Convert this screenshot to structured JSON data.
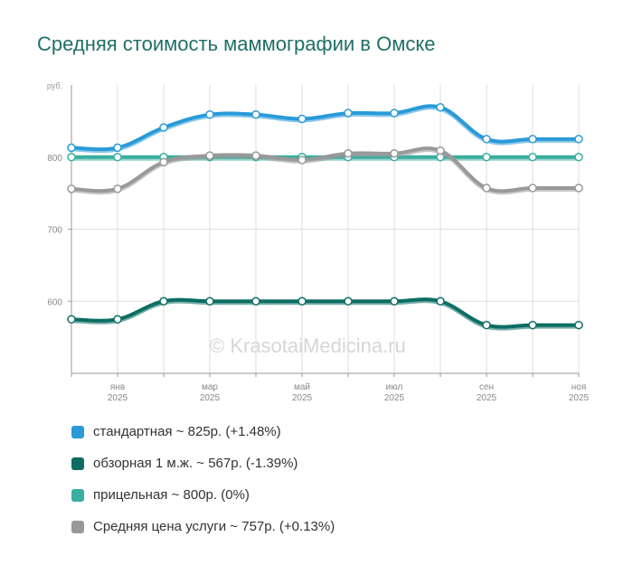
{
  "title": "Средняя стоимость маммографии в Омске",
  "watermark": "© KrasotaiMedicina.ru",
  "chart_data": {
    "type": "line",
    "title": "Средняя стоимость маммографии в Омске",
    "ylabel": "руб.",
    "xlabel": "",
    "ylim": [
      500,
      900
    ],
    "yticks": [
      600,
      700,
      800
    ],
    "grid": true,
    "legend_position": "bottom",
    "x": [
      "2024-12",
      "2025-01",
      "2025-02",
      "2025-03",
      "2025-04",
      "2025-05",
      "2025-06",
      "2025-07",
      "2025-08",
      "2025-09",
      "2025-10",
      "2025-11"
    ],
    "x_tick_labels": [
      {
        "index": 1,
        "month": "янв",
        "year": "2025"
      },
      {
        "index": 3,
        "month": "мар",
        "year": "2025"
      },
      {
        "index": 5,
        "month": "май",
        "year": "2025"
      },
      {
        "index": 7,
        "month": "июл",
        "year": "2025"
      },
      {
        "index": 9,
        "month": "сен",
        "year": "2025"
      },
      {
        "index": 11,
        "month": "ноя",
        "year": "2025"
      }
    ],
    "series": [
      {
        "name": "стандартная",
        "legend_label": "стандартная ~ 825р. (+1.48%)",
        "color": "#2a9ad8",
        "values": [
          813,
          813,
          841,
          859,
          859,
          853,
          861,
          861,
          869,
          825,
          825,
          825
        ]
      },
      {
        "name": "обзорная 1 м.ж.",
        "legend_label": "обзорная 1 м.ж. ~ 567р. (-1.39%)",
        "color": "#0c6e63",
        "values": [
          575,
          575,
          600,
          600,
          600,
          600,
          600,
          600,
          600,
          567,
          567,
          567
        ]
      },
      {
        "name": "прицельная",
        "legend_label": "прицельная ~ 800р. (0%)",
        "color": "#3aaea0",
        "values": [
          800,
          800,
          800,
          800,
          800,
          800,
          800,
          800,
          800,
          800,
          800,
          800
        ]
      },
      {
        "name": "Средняя цена услуги",
        "legend_label": "Средняя цена услуги ~ 757р. (+0.13%)",
        "color": "#999999",
        "values": [
          756,
          756,
          793,
          802,
          802,
          796,
          805,
          805,
          809,
          757,
          757,
          757
        ]
      }
    ]
  }
}
